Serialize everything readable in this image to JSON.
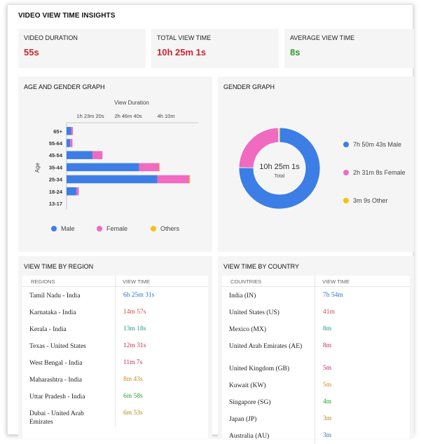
{
  "page_title": "VIDEO VIEW TIME INSIGHTS",
  "kpis": [
    {
      "label": "VIDEO DURATION",
      "value": "55s",
      "color": "#c8242f"
    },
    {
      "label": "TOTAL VIEW TIME",
      "value": "10h 25m 1s",
      "color": "#c8242f"
    },
    {
      "label": "AVERAGE VIEW TIME",
      "value": "8s",
      "color": "#2a9d2a"
    }
  ],
  "age_gender": {
    "title": "AGE AND GENDER GRAPH",
    "chart_data": {
      "type": "bar",
      "orientation": "horizontal",
      "stacked": true,
      "title": "View Duration",
      "ylabel": "Age",
      "categories": [
        "65+",
        "55-64",
        "45-54",
        "35-44",
        "25-34",
        "18-24",
        "13-17"
      ],
      "x_ticks": [
        "1h 23m 20s",
        "2h 46m 40s",
        "4h 10m"
      ],
      "x_tick_values_min": [
        83.33,
        166.67,
        250
      ],
      "xlim_min": [
        0,
        290
      ],
      "series": [
        {
          "name": "Male",
          "color": "#3d7ee6",
          "values": [
            10,
            8,
            57,
            160,
            200,
            22,
            0
          ]
        },
        {
          "name": "Female",
          "color": "#f06ac0",
          "values": [
            4,
            5,
            22,
            44,
            70,
            5,
            0
          ]
        },
        {
          "name": "Others",
          "color": "#f5c211",
          "values": [
            0,
            0,
            0,
            1,
            2,
            0,
            0
          ]
        }
      ],
      "legend": "bottom"
    }
  },
  "gender_graph": {
    "title": "GENDER GRAPH",
    "chart_data": {
      "type": "pie",
      "donut": true,
      "center_value": "10h 25m 1s",
      "center_label": "Total",
      "slices": [
        {
          "label": "7h 50m 43s Male",
          "value": 470.72,
          "color": "#3d7ee6"
        },
        {
          "label": "2h 31m 8s Female",
          "value": 151.13,
          "color": "#f06ac0"
        },
        {
          "label": "3m 9s Other",
          "value": 3.15,
          "color": "#f5c211"
        }
      ]
    }
  },
  "region_table": {
    "title": "VIEW TIME BY REGION",
    "col_name": "REGIONS",
    "col_value": "VIEW TIME",
    "rows": [
      {
        "name": "Tamil Nadu - India",
        "value": "6h 25m 31s",
        "color": "#2f6fd6"
      },
      {
        "name": "Karnataka - India",
        "value": "14m 57s",
        "color": "#d44848"
      },
      {
        "name": "Kerala - India",
        "value": "13m 18s",
        "color": "#1f9a8a"
      },
      {
        "name": "Texas - United States",
        "value": "12m 31s",
        "color": "#c72b57"
      },
      {
        "name": "West Bengal - India",
        "value": "11m 7s",
        "color": "#c72b57"
      },
      {
        "name": "Maharashtra - India",
        "value": "8m 43s",
        "color": "#c98a1a"
      },
      {
        "name": "Uttar Pradesh - India",
        "value": "6m 58s",
        "color": "#2a9d2a"
      },
      {
        "name": "Dubai - United Arab Emirates",
        "value": "6m 53s",
        "color": "#b08a1a"
      }
    ]
  },
  "country_table": {
    "title": "VIEW TIME BY COUNTRY",
    "col_name": "COUNTRIES",
    "col_value": "VIEW TIME",
    "rows": [
      {
        "name": "India (IN)",
        "value": "7h 54m",
        "color": "#2f6fd6"
      },
      {
        "name": "United States (US)",
        "value": "41m",
        "color": "#d44848"
      },
      {
        "name": "Mexico (MX)",
        "value": "8m",
        "color": "#1f9a8a"
      },
      {
        "name": "United Arab Emirates (AE)",
        "value": "8m",
        "color": "#c72b57"
      },
      {
        "name": "United Kingdom (GB)",
        "value": "5m",
        "color": "#c72b57"
      },
      {
        "name": "Kuwait (KW)",
        "value": "5m",
        "color": "#c98a1a"
      },
      {
        "name": "Singapore (SG)",
        "value": "4m",
        "color": "#2a9d2a"
      },
      {
        "name": "Japan (JP)",
        "value": "3m",
        "color": "#b08a1a"
      },
      {
        "name": "Australia (AU)",
        "value": "3m",
        "color": "#2f6fd6"
      }
    ]
  }
}
